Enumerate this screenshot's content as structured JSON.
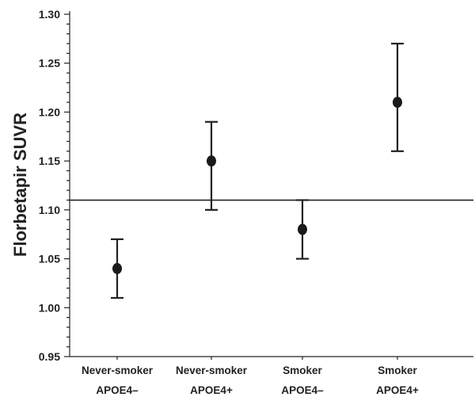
{
  "chart_data": {
    "type": "scatter",
    "subtype": "point-with-error-bars",
    "title": "",
    "xlabel": "",
    "ylabel": "Florbetapir SUVR",
    "ylim": [
      0.95,
      1.3
    ],
    "yticks": [
      "0.95",
      "1.00",
      "1.05",
      "1.10",
      "1.15",
      "1.20",
      "1.25",
      "1.30"
    ],
    "categories": [
      {
        "line1": "Never-smoker",
        "line2": "APOE4–"
      },
      {
        "line1": "Never-smoker",
        "line2": "APOE4+"
      },
      {
        "line1": "Smoker",
        "line2": "APOE4–"
      },
      {
        "line1": "Smoker",
        "line2": "APOE4+"
      }
    ],
    "points": [
      {
        "value": 1.04,
        "lower": 1.01,
        "upper": 1.07
      },
      {
        "value": 1.15,
        "lower": 1.1,
        "upper": 1.19
      },
      {
        "value": 1.08,
        "lower": 1.05,
        "upper": 1.11
      },
      {
        "value": 1.21,
        "lower": 1.16,
        "upper": 1.27
      }
    ],
    "reference_line": 1.11,
    "grid": false,
    "legend": "none",
    "colors": {
      "marker": "#1a1a1a",
      "axis": "#222222"
    }
  }
}
